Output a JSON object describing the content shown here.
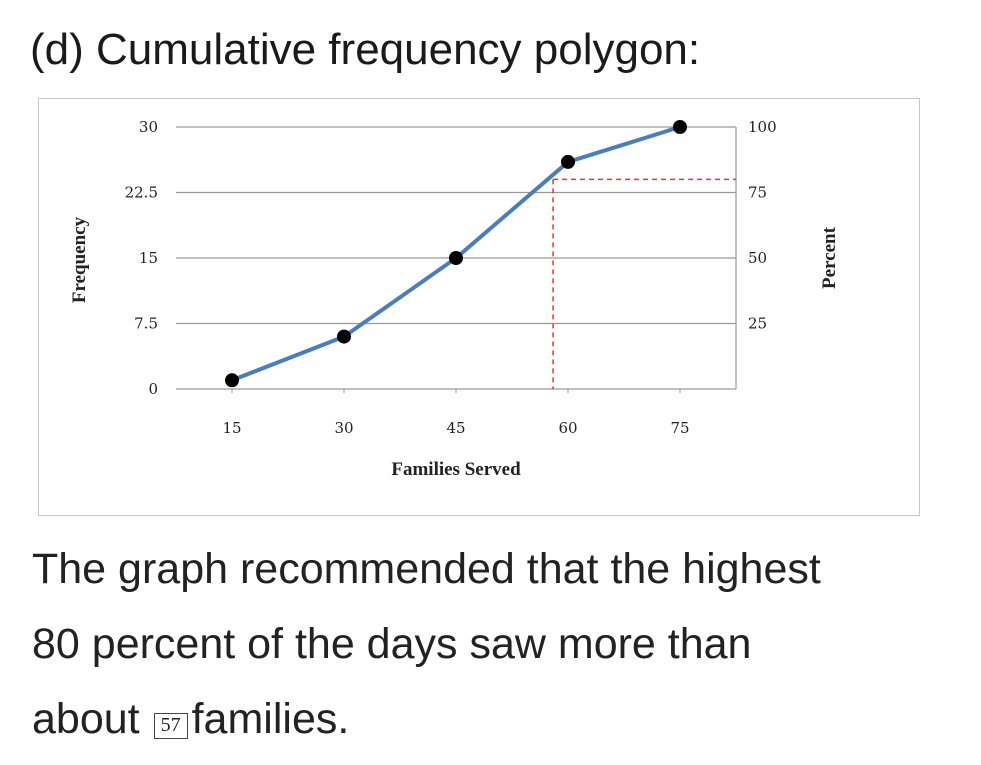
{
  "heading": "(d) Cumulative frequency polygon:",
  "sentence": {
    "line1": "The graph recommended that the highest",
    "line2": "80 percent of the days saw more than",
    "line3_before": "about",
    "answer_value": "57",
    "line3_after": "families."
  },
  "colors": {
    "line": "#4a7ebb",
    "marker": "#000000",
    "guide": "#e8352f",
    "gridline": "#9a9a9a"
  },
  "chart_data": {
    "type": "line",
    "xlabel": "Families Served",
    "ylabel": "Frequency",
    "y2label": "Percent",
    "x_ticks": [
      "15",
      "30",
      "45",
      "60",
      "75"
    ],
    "y_ticks": [
      "0",
      "7.5",
      "15",
      "22.5",
      "30"
    ],
    "y2_ticks": [
      "25",
      "50",
      "75",
      "100"
    ],
    "xlim": [
      7.5,
      82.5
    ],
    "ylim": [
      0,
      30
    ],
    "y2lim": [
      0,
      100
    ],
    "grid": "horizontal",
    "series": [
      {
        "x": [
          15,
          30,
          45,
          60,
          75
        ],
        "y": [
          1,
          6,
          15,
          26,
          30
        ]
      }
    ],
    "guide": {
      "percent": 80,
      "x": 58
    }
  }
}
